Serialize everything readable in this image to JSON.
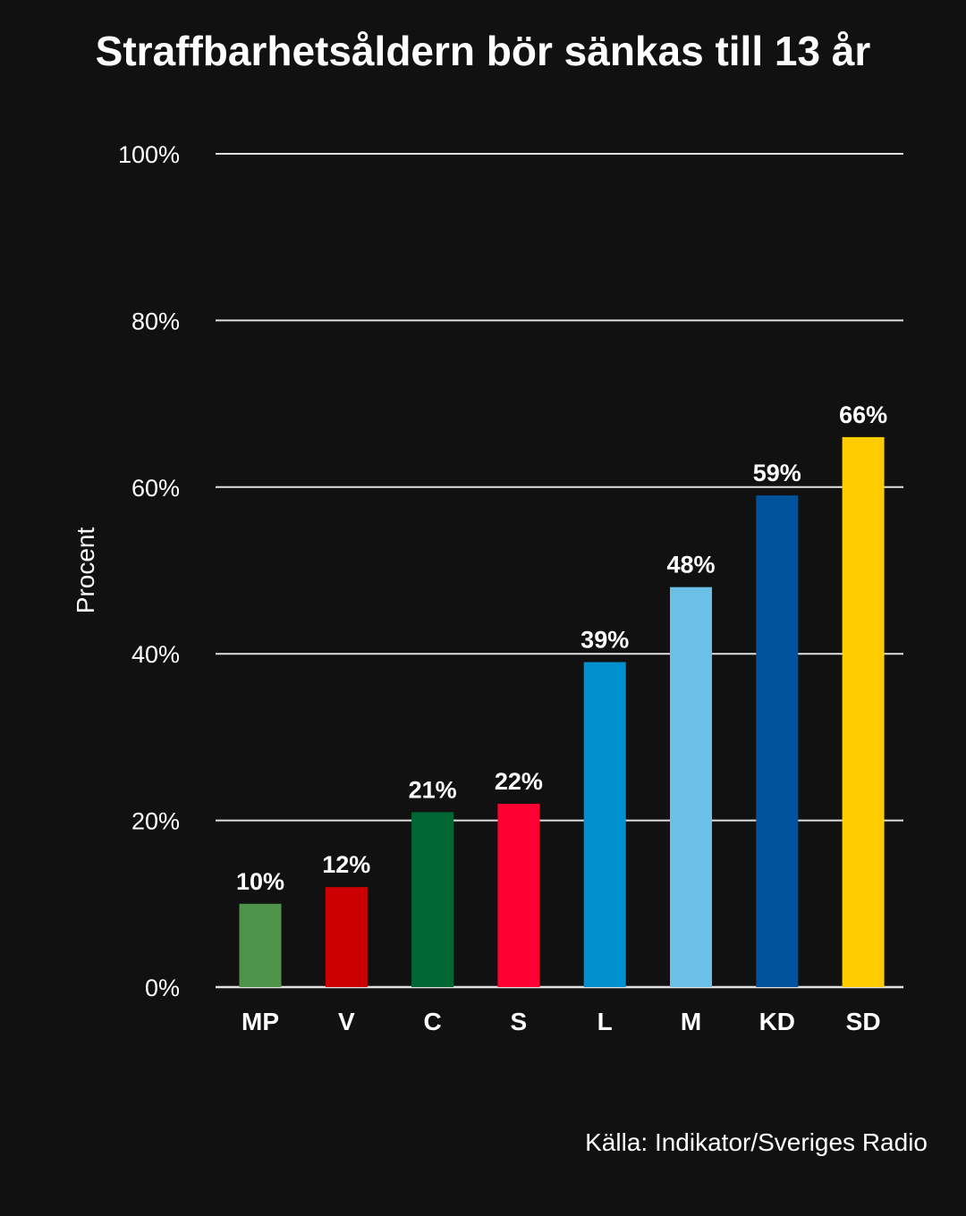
{
  "chart_data": {
    "type": "bar",
    "title": "Straffbarhetsåldern bör sänkas till 13 år",
    "ylabel": "Procent",
    "xlabel": "",
    "ylim": [
      0,
      100
    ],
    "yticks": [
      0,
      20,
      40,
      60,
      80,
      100
    ],
    "ytick_suffix": "%",
    "grid": true,
    "categories": [
      "MP",
      "V",
      "C",
      "S",
      "L",
      "M",
      "KD",
      "SD"
    ],
    "values": [
      10,
      12,
      21,
      22,
      39,
      48,
      59,
      66
    ],
    "data_labels": [
      "10%",
      "12%",
      "21%",
      "22%",
      "39%",
      "48%",
      "59%",
      "66%"
    ],
    "colors": [
      "#4E944A",
      "#CC0000",
      "#006633",
      "#FF0033",
      "#0090D0",
      "#6BC0E8",
      "#00529C",
      "#FFCC00"
    ],
    "source": "Källa: Indikator/Sveriges Radio"
  },
  "style": {
    "background": "#111111",
    "text_color": "#ffffff",
    "grid_color": "#e0e0e0"
  }
}
